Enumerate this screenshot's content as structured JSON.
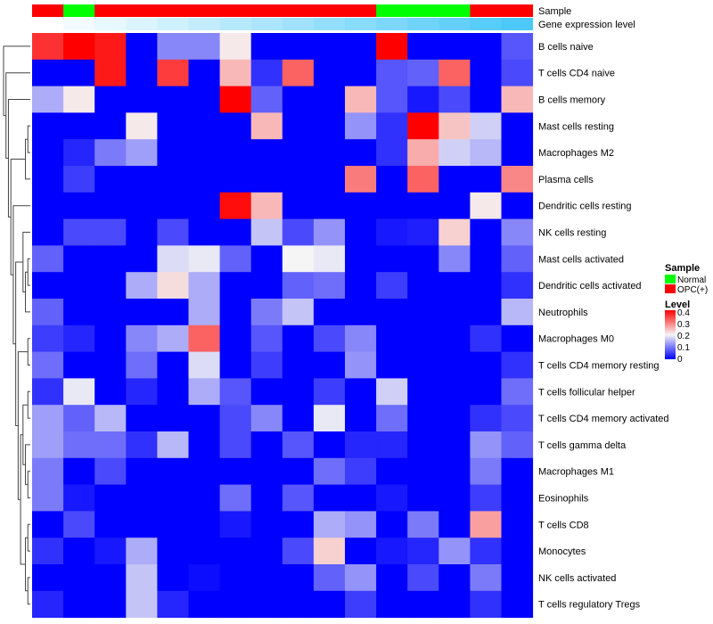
{
  "chart_data": {
    "type": "heatmap",
    "annotation_labels": {
      "sample": "Sample",
      "gene": "Gene expression level"
    },
    "sample_groups": [
      "OPC(+)",
      "Normal",
      "OPC(+)",
      "OPC(+)",
      "OPC(+)",
      "OPC(+)",
      "OPC(+)",
      "OPC(+)",
      "OPC(+)",
      "OPC(+)",
      "OPC(+)",
      "Normal",
      "Normal",
      "Normal",
      "OPC(+)",
      "OPC(+)"
    ],
    "gene_expression_rank": [
      0,
      1,
      2,
      3,
      4,
      5,
      6,
      7,
      8,
      9,
      10,
      11,
      12,
      13,
      14,
      15
    ],
    "rows": [
      "B cells naive",
      "T cells CD4 naive",
      "B cells memory",
      "Mast cells resting",
      "Macrophages M2",
      "Plasma cells",
      "Dendritic cells resting",
      "NK cells resting",
      "Mast cells activated",
      "Dendritic cells activated",
      "Neutrophils",
      "Macrophages M0",
      "T cells CD4 memory resting",
      "T cells follicular helper",
      "T cells CD4 memory activated",
      "T cells gamma delta",
      "Macrophages M1",
      "Eosinophils",
      "T cells CD8",
      "Monocytes",
      "NK cells activated",
      "T cells regulatory  Tregs"
    ],
    "values": [
      [
        0.36,
        0.4,
        0.38,
        0,
        0.11,
        0.11,
        0.21,
        0,
        0,
        0,
        0,
        0.4,
        0,
        0,
        0,
        0.07
      ],
      [
        0,
        0,
        0.38,
        0,
        0.35,
        0,
        0.25,
        0.04,
        0.32,
        0,
        0,
        0.07,
        0.08,
        0.32,
        0,
        0.06
      ],
      [
        0.14,
        0.21,
        0,
        0,
        0,
        0,
        0.4,
        0.08,
        0,
        0,
        0.25,
        0.07,
        0.02,
        0.06,
        0,
        0.25
      ],
      [
        0,
        0,
        0,
        0.21,
        0,
        0,
        0,
        0.25,
        0,
        0,
        0.12,
        0.04,
        0.4,
        0.24,
        0.17,
        0
      ],
      [
        0,
        0.03,
        0.1,
        0.13,
        0,
        0,
        0,
        0,
        0,
        0,
        0,
        0.04,
        0.26,
        0.17,
        0.15,
        0
      ],
      [
        0,
        0.05,
        0,
        0,
        0,
        0,
        0,
        0,
        0,
        0,
        0.3,
        0,
        0.32,
        0,
        0,
        0.29
      ],
      [
        0,
        0,
        0,
        0,
        0,
        0,
        0.39,
        0.25,
        0,
        0,
        0,
        0,
        0,
        0,
        0.21,
        0
      ],
      [
        0,
        0.06,
        0.06,
        0,
        0.06,
        0,
        0,
        0.16,
        0.06,
        0.12,
        0,
        0.02,
        0.025,
        0.23,
        0,
        0.11
      ],
      [
        0.08,
        0,
        0,
        0,
        0.18,
        0.19,
        0.08,
        0,
        0.2,
        0.19,
        0,
        0,
        0,
        0.11,
        0,
        0.08
      ],
      [
        0,
        0,
        0,
        0.14,
        0.22,
        0.14,
        0,
        0,
        0.08,
        0.09,
        0,
        0.05,
        0,
        0,
        0,
        0.04
      ],
      [
        0.08,
        0,
        0,
        0,
        0,
        0.14,
        0,
        0.1,
        0.16,
        0,
        0,
        0,
        0,
        0,
        0,
        0.15
      ],
      [
        0.05,
        0.03,
        0,
        0.11,
        0.14,
        0.32,
        0,
        0.07,
        0,
        0.06,
        0.11,
        0,
        0,
        0,
        0.04,
        0
      ],
      [
        0.09,
        0,
        0,
        0.09,
        0,
        0.18,
        0,
        0.05,
        0,
        0,
        0.12,
        0,
        0,
        0,
        0,
        0.04
      ],
      [
        0.04,
        0.19,
        0,
        0.03,
        0,
        0.14,
        0.07,
        0,
        0,
        0.05,
        0,
        0.17,
        0,
        0,
        0,
        0.09
      ],
      [
        0.13,
        0.08,
        0.15,
        0,
        0,
        0,
        0.06,
        0.11,
        0,
        0.19,
        0,
        0.09,
        0,
        0,
        0.04,
        0.06
      ],
      [
        0.13,
        0.09,
        0.09,
        0.04,
        0.15,
        0,
        0.06,
        0,
        0.07,
        0,
        0.03,
        0.03,
        0,
        0,
        0.12,
        0.08
      ],
      [
        0.1,
        0,
        0.06,
        0,
        0,
        0,
        0,
        0,
        0,
        0.09,
        0.05,
        0,
        0,
        0,
        0.1,
        0
      ],
      [
        0.1,
        0.02,
        0,
        0,
        0,
        0,
        0.09,
        0,
        0.07,
        0,
        0,
        0.02,
        0,
        0,
        0.05,
        0
      ],
      [
        0,
        0.06,
        0,
        0,
        0,
        0,
        0.02,
        0,
        0,
        0.14,
        0.12,
        0,
        0.1,
        0,
        0.27,
        0
      ],
      [
        0.04,
        0,
        0.02,
        0.14,
        0,
        0,
        0,
        0,
        0.06,
        0.23,
        0,
        0.02,
        0.03,
        0.12,
        0.04,
        0
      ],
      [
        0,
        0,
        0,
        0.16,
        0,
        0.01,
        0,
        0,
        0,
        0.08,
        0.12,
        0,
        0.06,
        0,
        0.1,
        0
      ],
      [
        0.03,
        0,
        0,
        0.16,
        0.03,
        0,
        0,
        0,
        0,
        0,
        0.05,
        0,
        0,
        0,
        0.04,
        0
      ]
    ],
    "color_range": [
      0,
      0.4
    ],
    "colors": {
      "low": "#0000FF",
      "mid": "#F5F5F5",
      "high": "#FF0000",
      "normal": "#00FF00",
      "opc": "#FF0000",
      "gene_low": "#FFFFFF",
      "gene_high": "#4CC9F9"
    },
    "legend": {
      "sample_title": "Sample",
      "sample_items": [
        "Normal",
        "OPC(+)"
      ],
      "level_title": "Level",
      "level_ticks": [
        "0.4",
        "0.3",
        "0.2",
        "0.1",
        "0"
      ],
      "placement": "right"
    }
  }
}
